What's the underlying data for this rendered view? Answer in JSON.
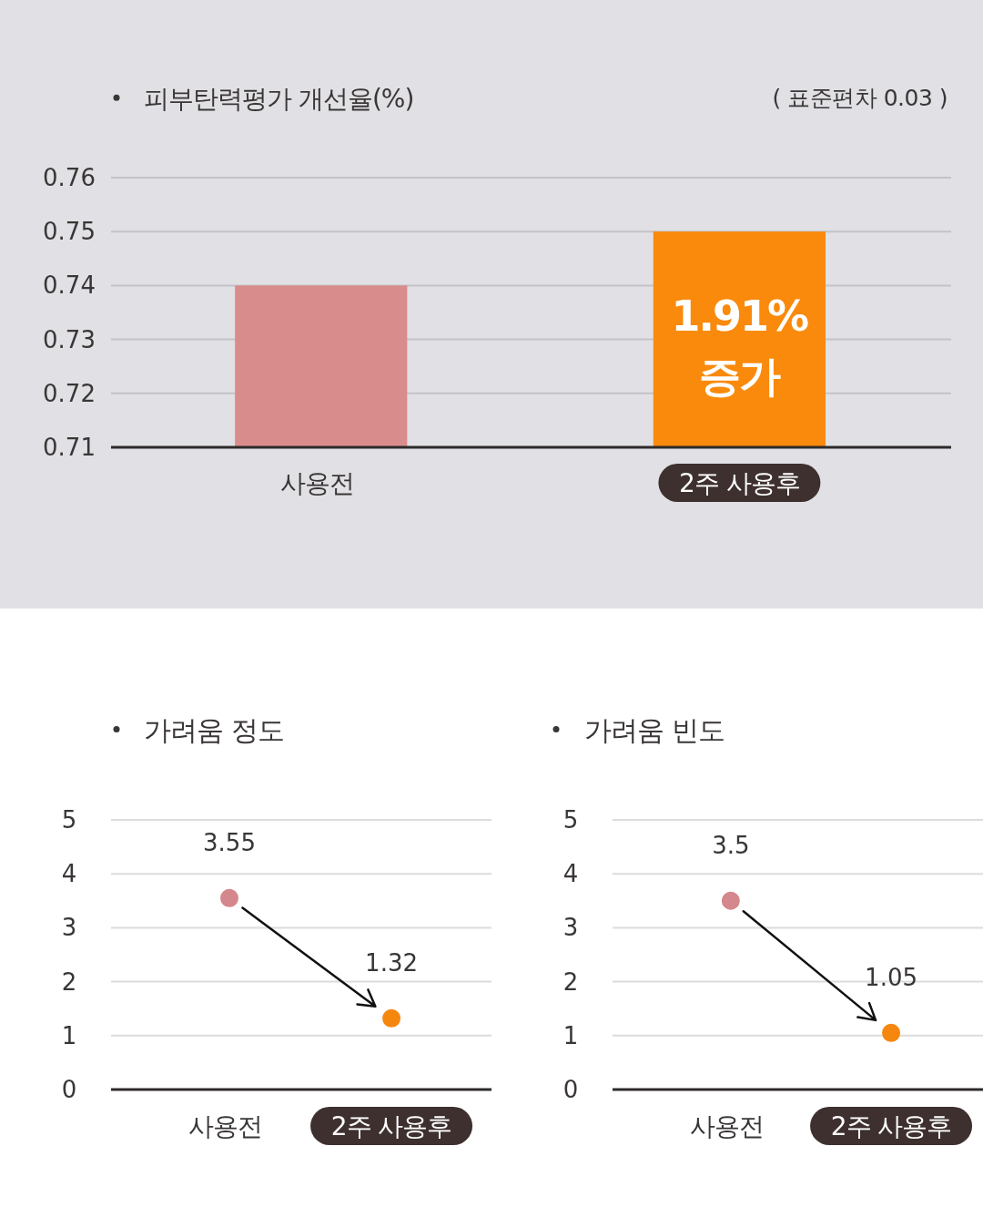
{
  "chart_data": [
    {
      "type": "bar",
      "title": "피부탄력평가 개선율(%)",
      "subtitle": "( 표준편차 0.03 )",
      "categories": [
        "사용전",
        "2주 사용후"
      ],
      "values": [
        0.74,
        0.75
      ],
      "colors": [
        "#d98c8c",
        "#f98a0c"
      ],
      "ylim": [
        0.71,
        0.76
      ],
      "yticks": [
        0.71,
        0.72,
        0.73,
        0.74,
        0.75,
        0.76
      ],
      "grid": "y",
      "annotations": [
        "1.91% 증가"
      ]
    },
    {
      "type": "scatter",
      "title": "가려움 정도",
      "categories": [
        "사용전",
        "2주 사용후"
      ],
      "values": [
        3.55,
        1.32
      ],
      "colors": [
        "#d4878c",
        "#f5870f"
      ],
      "ylim": [
        0,
        5
      ],
      "yticks": [
        0,
        1,
        2,
        3,
        4,
        5
      ],
      "grid": "y",
      "marker": "circle",
      "data_labels": true
    },
    {
      "type": "scatter",
      "title": "가려움 빈도",
      "categories": [
        "사용전",
        "2주 사용후"
      ],
      "values": [
        3.5,
        1.05
      ],
      "colors": [
        "#d4878c",
        "#f5870f"
      ],
      "ylim": [
        0,
        5
      ],
      "yticks": [
        0,
        1,
        2,
        3,
        4,
        5
      ],
      "grid": "y",
      "marker": "circle",
      "data_labels": true
    }
  ]
}
